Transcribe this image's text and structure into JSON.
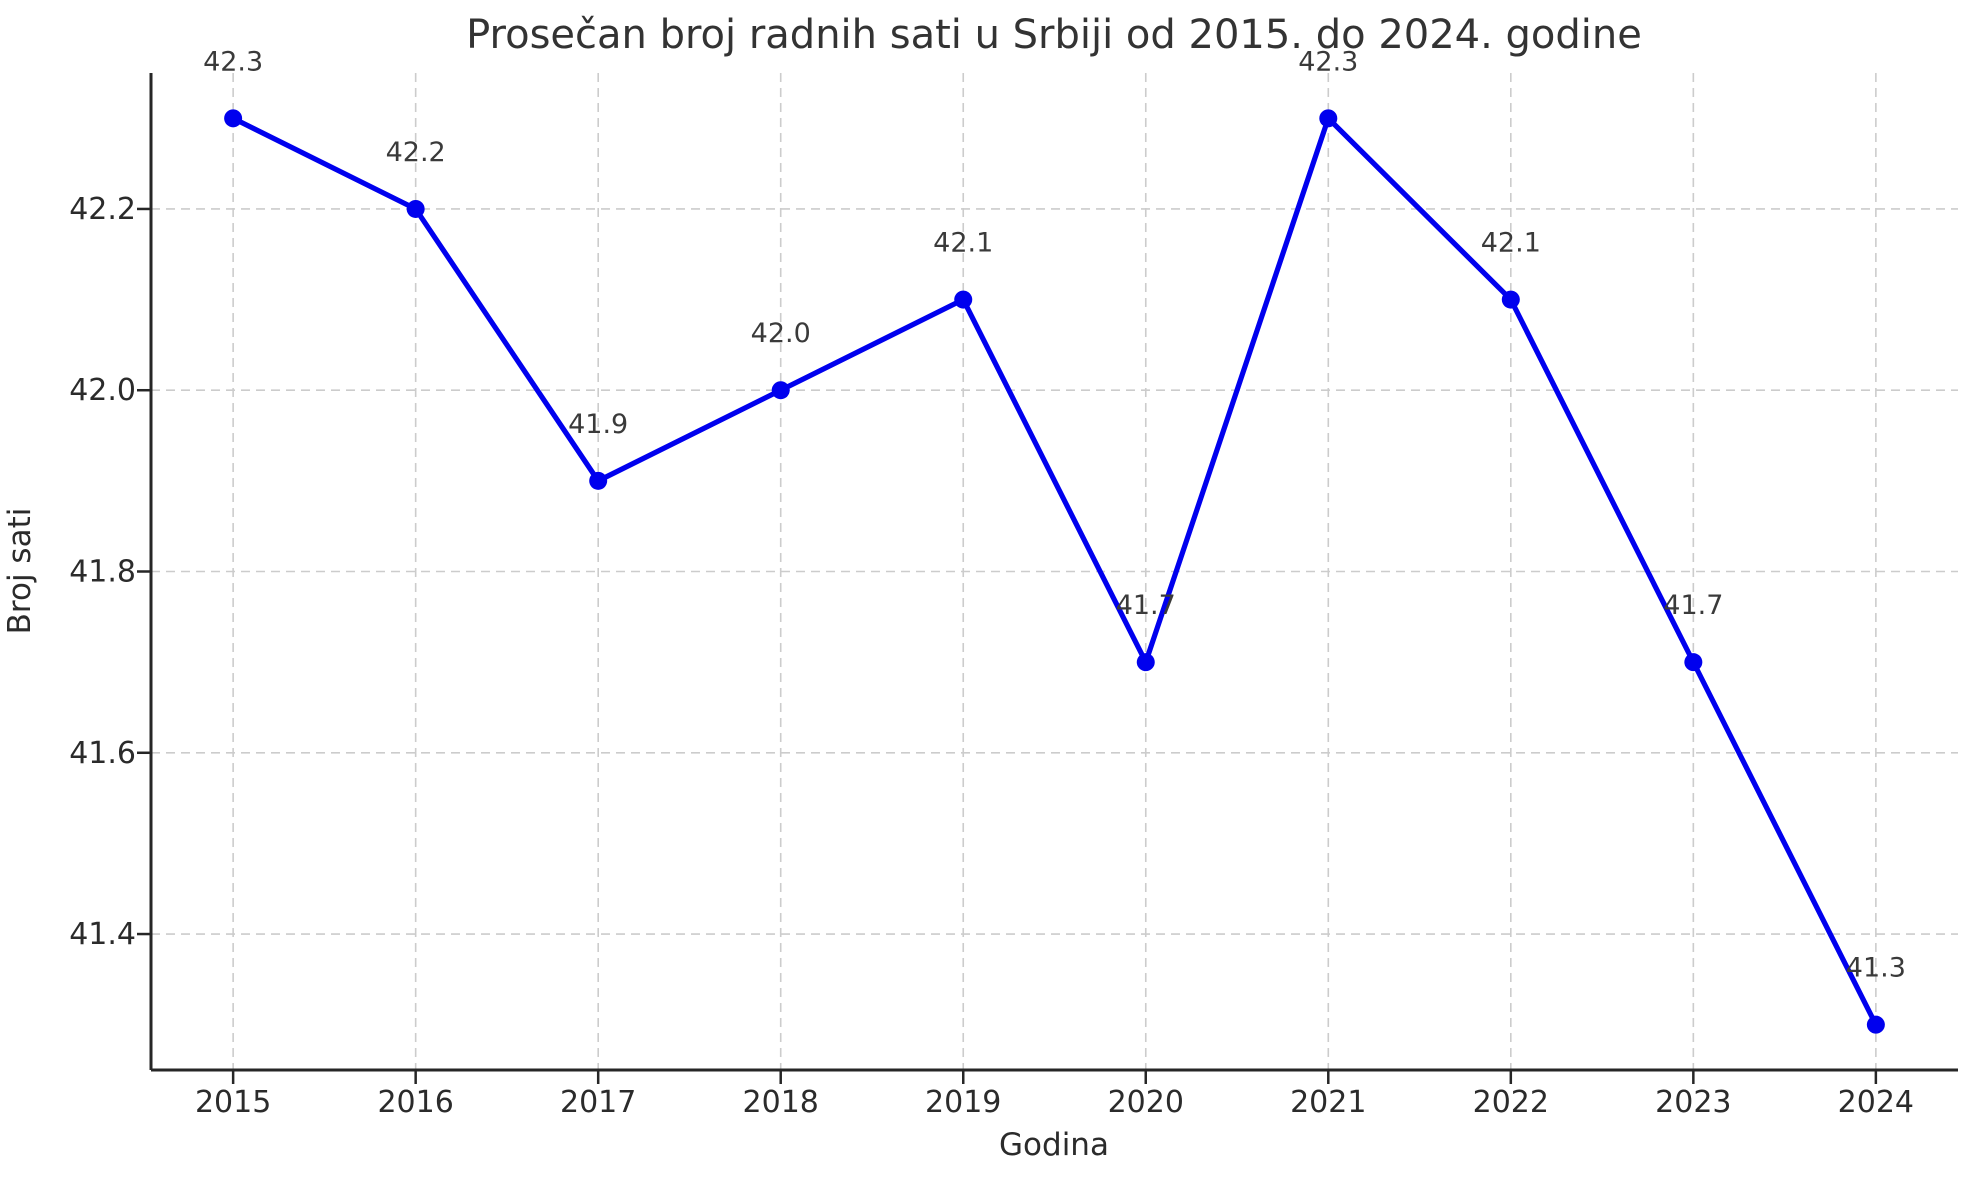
{
  "chart_data": {
    "type": "line",
    "title": "Prosečan broj radnih sati u Srbiji od 2015. do 2024. godine",
    "xlabel": "Godina",
    "ylabel": "Broj sati",
    "x": [
      2015,
      2016,
      2017,
      2018,
      2019,
      2020,
      2021,
      2022,
      2023,
      2024
    ],
    "values": [
      42.3,
      42.2,
      41.9,
      42.0,
      42.1,
      41.7,
      42.3,
      42.1,
      41.7,
      41.3
    ],
    "point_labels": [
      "42.3",
      "42.2",
      "41.9",
      "42.0",
      "42.1",
      "41.7",
      "42.3",
      "42.1",
      "41.7",
      "41.3"
    ],
    "x_tick_labels": [
      "2015",
      "2016",
      "2017",
      "2018",
      "2019",
      "2020",
      "2021",
      "2022",
      "2023",
      "2024"
    ],
    "y_ticks": [
      41.4,
      41.6,
      41.8,
      42.0,
      42.2
    ],
    "y_tick_labels": [
      "41.4",
      "41.6",
      "41.8",
      "42.0",
      "42.2"
    ],
    "xlim": [
      2014.55,
      2024.45
    ],
    "ylim": [
      41.25,
      42.35
    ],
    "grid": true,
    "grid_style": "dashed",
    "legend": "none",
    "line_color": "#0000ee",
    "marker_color": "#0000ee",
    "grid_color": "#cccccc",
    "axis_color": "#262626",
    "text_color": "#2b2b2b",
    "background_color": "#ffffff"
  }
}
